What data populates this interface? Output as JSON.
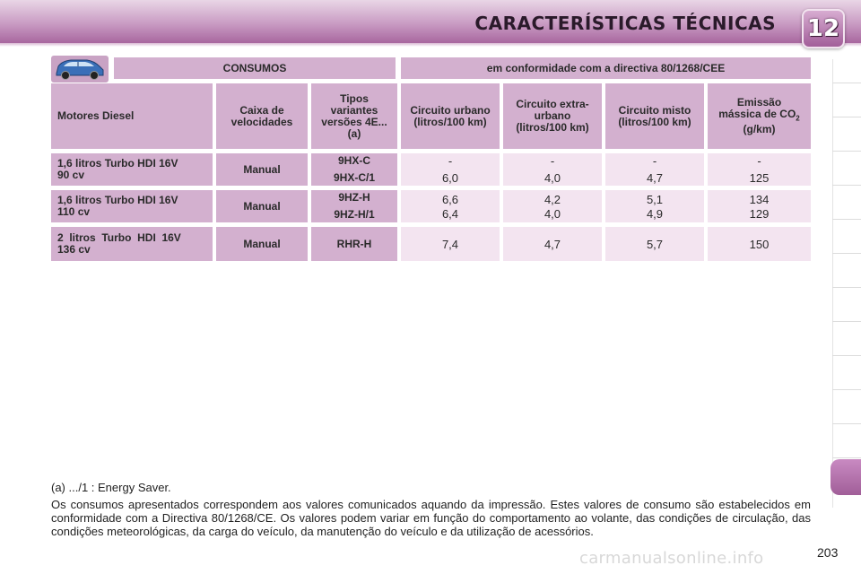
{
  "header": {
    "title": "CARACTERÍSTICAS TÉCNICAS",
    "chapter_number": "12"
  },
  "table": {
    "banner_left": "CONSUMOS",
    "banner_right": "em conformidade com a directiva 80/1268/CEE",
    "headers": {
      "engine": "Motores Diesel",
      "gearbox": "Caixa de velocidades",
      "types": "Tipos variantes versões 4E... (a)",
      "urban": "Circuito urbano (litros/100 km)",
      "extra_urban": "Circuito extra-urbano (litros/100 km)",
      "mixed": "Circuito misto (litros/100 km)",
      "co2_prefix": "Emissão mássica de CO",
      "co2_sub": "2",
      "co2_suffix": " (g/km)"
    },
    "rows": [
      {
        "engine_line1": "1,6 litros Turbo HDI 16V",
        "engine_line2": "90 cv",
        "gearbox": "Manual",
        "types": [
          "9HX-C",
          "9HX-C/1"
        ],
        "urban": [
          "-",
          "6,0"
        ],
        "extra_urban": [
          "-",
          "4,0"
        ],
        "mixed": [
          "-",
          "4,7"
        ],
        "co2": [
          "-",
          "125"
        ]
      },
      {
        "engine_line1": "1,6 litros Turbo HDI 16V",
        "engine_line2": "110 cv",
        "gearbox": "Manual",
        "types": [
          "9HZ-H",
          "9HZ-H/1"
        ],
        "urban": [
          "6,6",
          "6,4"
        ],
        "extra_urban": [
          "4,2",
          "4,0"
        ],
        "mixed": [
          "5,1",
          "4,9"
        ],
        "co2": [
          "134",
          "129"
        ]
      },
      {
        "engine_line1": "2  litros  Turbo  HDI  16V",
        "engine_line2": "136 cv",
        "gearbox": "Manual",
        "types": [
          "RHR-H"
        ],
        "urban": [
          "7,4"
        ],
        "extra_urban": [
          "4,7"
        ],
        "mixed": [
          "5,7"
        ],
        "co2": [
          "150"
        ]
      }
    ]
  },
  "footnotes": {
    "a": "(a) .../1 : Energy Saver.",
    "body": "Os consumos apresentados correspondem aos valores comunicados aquando da impressão. Estes valores de consumo são estabelecidos em conformidade com a Directiva 80/1268/CE. Os valores podem variar em função do comportamento ao volante, das condições de circulação, das condições meteorológicas, da carga do veículo, da manutenção do veículo e da utilização de acessórios."
  },
  "page_number": "203",
  "watermark": "carmanualsonline.info",
  "colors": {
    "header_accent": "#a8679f",
    "cell_dark": "#d3b0cf",
    "cell_light": "#f3e4f0"
  }
}
